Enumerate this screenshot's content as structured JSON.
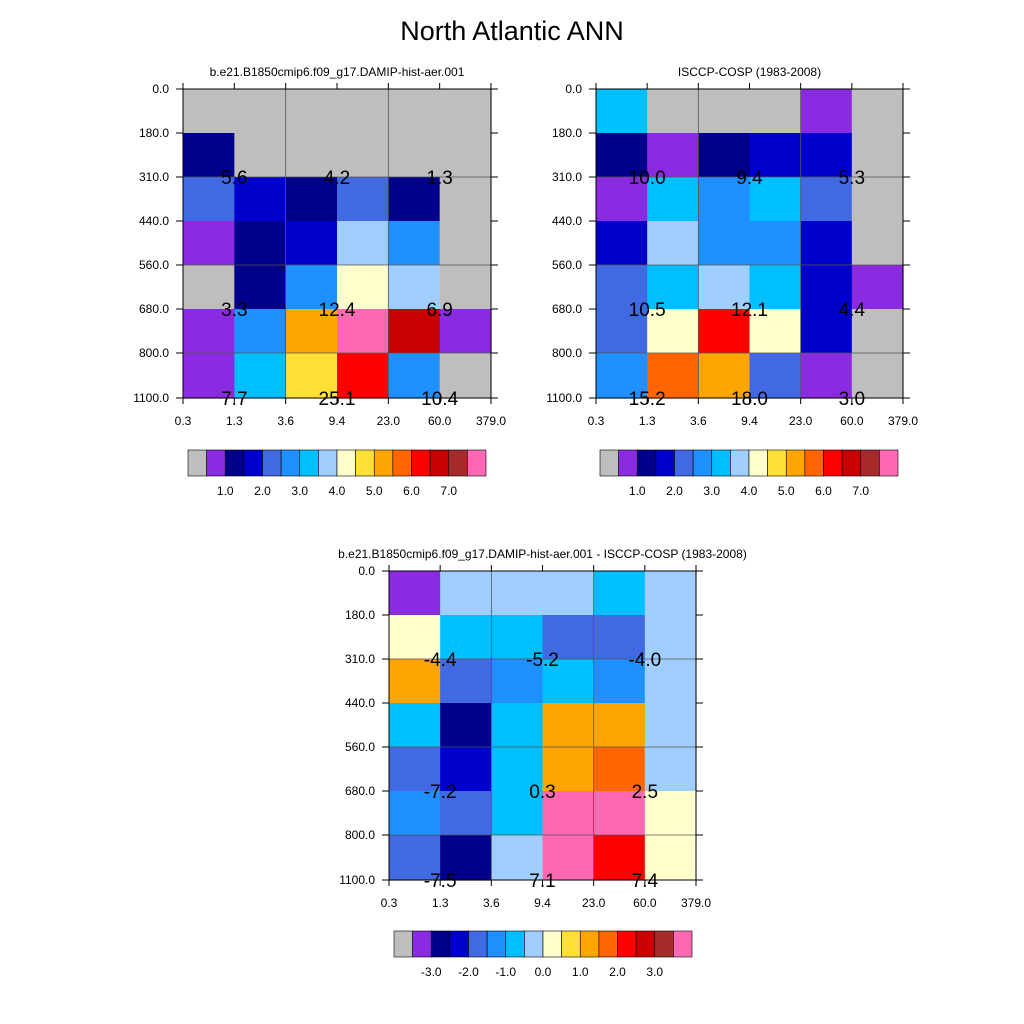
{
  "figure_title": "North Atlantic ANN",
  "palette": [
    "#BEBEBE",
    "#8A2BE2",
    "#00008B",
    "#0000CD",
    "#4169E1",
    "#1E90FF",
    "#00BFFF",
    "#A0CFFF",
    "#FFFFCC",
    "#FFE135",
    "#FFA500",
    "#FF6600",
    "#FF0000",
    "#C80000",
    "#A52A2A",
    "#FF69B4"
  ],
  "chart_data": [
    {
      "type": "heatmap",
      "title": "b.e21.B1850cmip6.f09_g17.DAMIP-hist-aer.001",
      "x_tick_labels": [
        "0.3",
        "1.3",
        "3.6",
        "9.4",
        "23.0",
        "60.0",
        "379.0"
      ],
      "y_tick_labels": [
        "0.0",
        "180.0",
        "310.0",
        "440.0",
        "560.0",
        "680.0",
        "800.0",
        "1100.0"
      ],
      "cell_colors": [
        [
          0,
          0,
          0,
          0,
          0,
          0
        ],
        [
          2,
          0,
          0,
          0,
          0,
          0
        ],
        [
          4,
          3,
          2,
          4,
          2,
          0
        ],
        [
          1,
          2,
          3,
          7,
          5,
          0
        ],
        [
          0,
          2,
          5,
          8,
          7,
          0
        ],
        [
          1,
          5,
          10,
          15,
          13,
          1
        ],
        [
          1,
          6,
          9,
          12,
          5,
          0
        ]
      ],
      "value_labels": [
        {
          "col": 1,
          "row": 1,
          "text": "5.6"
        },
        {
          "col": 3,
          "row": 1,
          "text": "4.2"
        },
        {
          "col": 5,
          "row": 1,
          "text": "1.3"
        },
        {
          "col": 1,
          "row": 4,
          "text": "3.3"
        },
        {
          "col": 3,
          "row": 4,
          "text": "12.4"
        },
        {
          "col": 5,
          "row": 4,
          "text": "6.9"
        },
        {
          "col": 1,
          "row": 6,
          "text": "7.7"
        },
        {
          "col": 3,
          "row": 6,
          "text": "25.1"
        },
        {
          "col": 5,
          "row": 6,
          "text": "10.4"
        }
      ],
      "colorbar_labels": [
        "1.0",
        "2.0",
        "3.0",
        "4.0",
        "5.0",
        "6.0",
        "7.0"
      ]
    },
    {
      "type": "heatmap",
      "title": "ISCCP-COSP (1983-2008)",
      "x_tick_labels": [
        "0.3",
        "1.3",
        "3.6",
        "9.4",
        "23.0",
        "60.0",
        "379.0"
      ],
      "y_tick_labels": [
        "0.0",
        "180.0",
        "310.0",
        "440.0",
        "560.0",
        "680.0",
        "800.0",
        "1100.0"
      ],
      "cell_colors": [
        [
          6,
          0,
          0,
          0,
          1,
          0
        ],
        [
          2,
          1,
          2,
          3,
          3,
          0
        ],
        [
          1,
          6,
          5,
          6,
          4,
          0
        ],
        [
          3,
          7,
          5,
          5,
          3,
          0
        ],
        [
          4,
          6,
          7,
          6,
          3,
          1
        ],
        [
          4,
          8,
          12,
          8,
          3,
          0
        ],
        [
          5,
          11,
          10,
          4,
          1,
          0
        ]
      ],
      "value_labels": [
        {
          "col": 1,
          "row": 1,
          "text": "10.0"
        },
        {
          "col": 3,
          "row": 1,
          "text": "9.4"
        },
        {
          "col": 5,
          "row": 1,
          "text": "5.3"
        },
        {
          "col": 1,
          "row": 4,
          "text": "10.5"
        },
        {
          "col": 3,
          "row": 4,
          "text": "12.1"
        },
        {
          "col": 5,
          "row": 4,
          "text": "4.4"
        },
        {
          "col": 1,
          "row": 6,
          "text": "15.2"
        },
        {
          "col": 3,
          "row": 6,
          "text": "18.0"
        },
        {
          "col": 5,
          "row": 6,
          "text": "3.0"
        }
      ],
      "colorbar_labels": [
        "1.0",
        "2.0",
        "3.0",
        "4.0",
        "5.0",
        "6.0",
        "7.0"
      ]
    },
    {
      "type": "heatmap",
      "title": "b.e21.B1850cmip6.f09_g17.DAMIP-hist-aer.001 - ISCCP-COSP (1983-2008)",
      "x_tick_labels": [
        "0.3",
        "1.3",
        "3.6",
        "9.4",
        "23.0",
        "60.0",
        "379.0"
      ],
      "y_tick_labels": [
        "0.0",
        "180.0",
        "310.0",
        "440.0",
        "560.0",
        "680.0",
        "800.0",
        "1100.0"
      ],
      "cell_colors": [
        [
          1,
          7,
          7,
          7,
          6,
          7
        ],
        [
          8,
          6,
          6,
          4,
          4,
          7
        ],
        [
          10,
          4,
          5,
          6,
          5,
          7
        ],
        [
          6,
          2,
          6,
          10,
          10,
          7
        ],
        [
          4,
          3,
          6,
          10,
          11,
          7
        ],
        [
          5,
          4,
          6,
          15,
          15,
          8
        ],
        [
          4,
          2,
          7,
          15,
          12,
          8
        ]
      ],
      "value_labels": [
        {
          "col": 1,
          "row": 1,
          "text": "-4.4"
        },
        {
          "col": 3,
          "row": 1,
          "text": "-5.2"
        },
        {
          "col": 5,
          "row": 1,
          "text": "-4.0"
        },
        {
          "col": 1,
          "row": 4,
          "text": "-7.2"
        },
        {
          "col": 3,
          "row": 4,
          "text": "0.3"
        },
        {
          "col": 5,
          "row": 4,
          "text": "2.5"
        },
        {
          "col": 1,
          "row": 6,
          "text": "-7.5"
        },
        {
          "col": 3,
          "row": 6,
          "text": "7.1"
        },
        {
          "col": 5,
          "row": 6,
          "text": "7.4"
        }
      ],
      "colorbar_labels": [
        "-3.0",
        "-2.0",
        "-1.0",
        "0.0",
        "1.0",
        "2.0",
        "3.0"
      ]
    }
  ]
}
